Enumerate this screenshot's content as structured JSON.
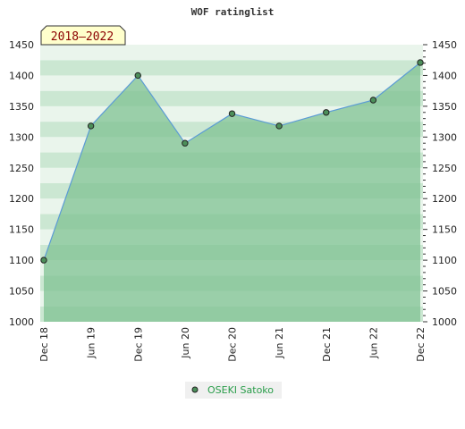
{
  "chart_data": {
    "type": "area",
    "title": "WOF ratinglist",
    "badge": "2018–2022",
    "categories": [
      "Dec 18",
      "Jun 19",
      "Dec 19",
      "Jun 20",
      "Dec 20",
      "Jun 21",
      "Dec 21",
      "Jun 22",
      "Dec 22"
    ],
    "series": [
      {
        "name": "OSEKI Satoko",
        "values": [
          1100,
          1318,
          1400,
          1290,
          1338,
          1318,
          1340,
          1360,
          1421
        ]
      }
    ],
    "ylim": [
      1000,
      1450
    ],
    "yticks": [
      1000,
      1050,
      1100,
      1150,
      1200,
      1250,
      1300,
      1350,
      1400,
      1450
    ],
    "xlabel": "",
    "ylabel": "",
    "legend": "bottom-center",
    "colors": {
      "line": "#5b9bd5",
      "fill": "#7cc08f",
      "marker": "#4c8f5a",
      "band_light": "#eaf5ec",
      "band_dark": "#cbe7d2",
      "badge_bg": "#ffffcc",
      "legend_bg": "#f0f0f0"
    }
  }
}
